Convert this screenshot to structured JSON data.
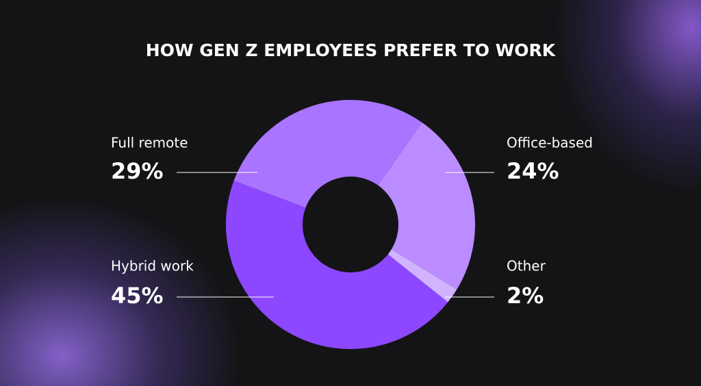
{
  "chart_data": {
    "type": "donut",
    "title": "HOW GEN Z EMPLOYEES PREFER TO WORK",
    "categories": [
      "Office-based",
      "Other",
      "Hybrid work",
      "Full remote"
    ],
    "values": [
      24,
      2,
      45,
      29
    ],
    "value_labels": [
      "24%",
      "2%",
      "45%",
      "29%"
    ],
    "colors": [
      "#bb8cff",
      "#d2b3ff",
      "#8c47ff",
      "#a974ff"
    ]
  }
}
